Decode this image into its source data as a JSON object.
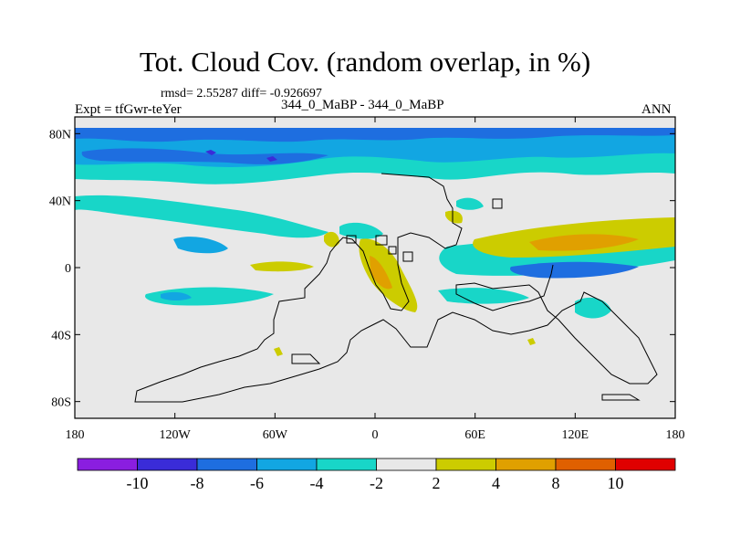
{
  "header": {
    "title": "Tot. Cloud Cov. (random overlap, in %)",
    "stats": "rmsd= 2.55287 diff= -0.926697",
    "expt": "Expt = tfGwr-teYer",
    "subtitle": "344_0_MaBP - 344_0_MaBP",
    "season": "ANN"
  },
  "map": {
    "projection": "cylindrical-equidistant",
    "lon_range": [
      -180,
      180
    ],
    "lat_range": [
      -90,
      90
    ],
    "lat_ticks": [
      {
        "value": 80,
        "label": "80N"
      },
      {
        "value": 40,
        "label": "40N"
      },
      {
        "value": 0,
        "label": "0"
      },
      {
        "value": -40,
        "label": "40S"
      },
      {
        "value": -80,
        "label": "80S"
      }
    ],
    "lon_ticks": [
      {
        "value": -180,
        "label": "180"
      },
      {
        "value": -120,
        "label": "120W"
      },
      {
        "value": -60,
        "label": "60W"
      },
      {
        "value": 0,
        "label": "0"
      },
      {
        "value": 60,
        "label": "60E"
      },
      {
        "value": 120,
        "label": "120E"
      },
      {
        "value": 180,
        "label": "180"
      }
    ],
    "background_color": "#e8e8e8",
    "coast_color": "#000000"
  },
  "colorbar": {
    "colors": [
      "#8a1ee0",
      "#3a2cd8",
      "#1e6ee0",
      "#12a6e2",
      "#18d6c8",
      "#e8e8e8",
      "#cccc00",
      "#e0a000",
      "#e06000",
      "#e00000"
    ],
    "labels": [
      "-10",
      "-8",
      "-6",
      "-4",
      "-2",
      "2",
      "4",
      "8",
      "10"
    ]
  }
}
